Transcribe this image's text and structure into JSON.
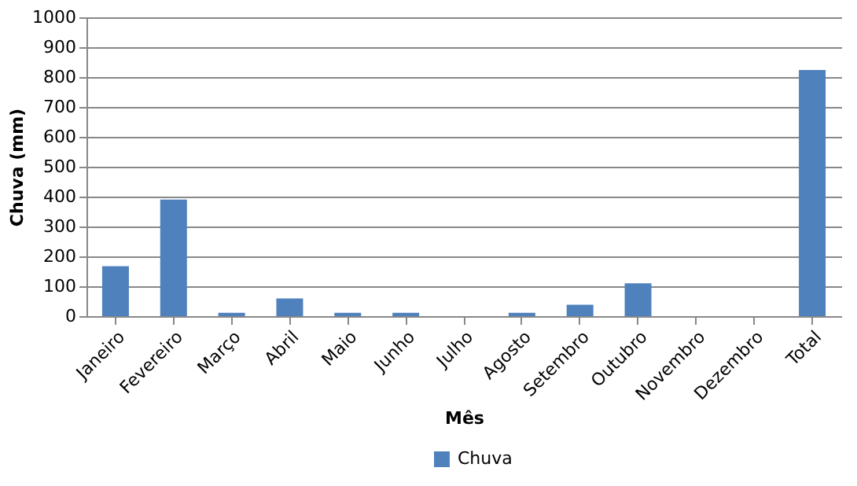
{
  "chart_data": {
    "type": "bar",
    "xlabel": "Mês",
    "ylabel": "Chuva (mm)",
    "categories": [
      "Janeiro",
      "Fevereiro",
      "Março",
      "Abril",
      "Maio",
      "Junho",
      "Julho",
      "Agosto",
      "Setembro",
      "Outubro",
      "Novembro",
      "Dezembro",
      "Total"
    ],
    "series": [
      {
        "name": "Chuva",
        "color": "#4f81bd",
        "values": [
          167,
          390,
          11,
          59,
          11,
          11,
          0,
          11,
          38,
          110,
          0,
          0,
          824
        ]
      }
    ],
    "ylim": [
      0,
      1000
    ],
    "yticks": [
      0,
      100,
      200,
      300,
      400,
      500,
      600,
      700,
      800,
      900,
      1000
    ],
    "grid": "y",
    "legend": "bottom"
  }
}
